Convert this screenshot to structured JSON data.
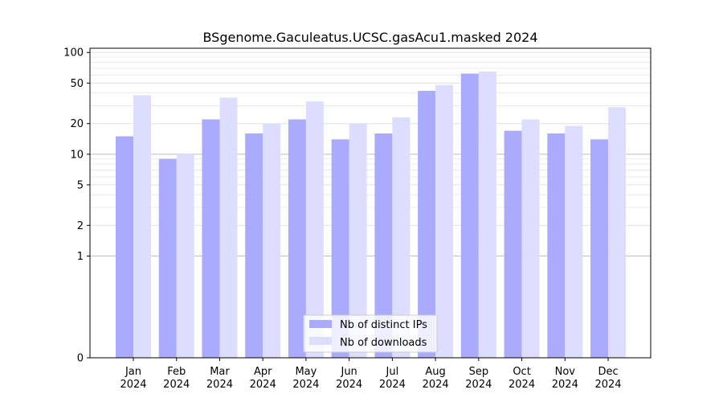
{
  "chart_data": {
    "type": "bar",
    "title": "BSgenome.Gaculeatus.UCSC.gasAcu1.masked 2024",
    "xlabel": "",
    "ylabel": "",
    "categories": [
      "Jan\n2024",
      "Feb\n2024",
      "Mar\n2024",
      "Apr\n2024",
      "May\n2024",
      "Jun\n2024",
      "Jul\n2024",
      "Aug\n2024",
      "Sep\n2024",
      "Oct\n2024",
      "Nov\n2024",
      "Dec\n2024"
    ],
    "category_month": [
      "Jan",
      "Feb",
      "Mar",
      "Apr",
      "May",
      "Jun",
      "Jul",
      "Aug",
      "Sep",
      "Oct",
      "Nov",
      "Dec"
    ],
    "category_year": [
      "2024",
      "2024",
      "2024",
      "2024",
      "2024",
      "2024",
      "2024",
      "2024",
      "2024",
      "2024",
      "2024",
      "2024"
    ],
    "series": [
      {
        "name": "Nb of distinct IPs",
        "color": "#aaaaff",
        "values": [
          15,
          9,
          22,
          16,
          22,
          14,
          16,
          42,
          62,
          17,
          16,
          14
        ]
      },
      {
        "name": "Nb of downloads",
        "color": "#ddddff",
        "values": [
          38,
          10,
          36,
          20,
          33,
          20,
          23,
          48,
          65,
          22,
          19,
          29
        ]
      }
    ],
    "y_scale": "symlog",
    "ylim": [
      0,
      110
    ],
    "y_ticks": [
      0,
      1,
      2,
      5,
      10,
      20,
      50,
      100
    ],
    "y_tick_labels": [
      "0",
      "1",
      "2",
      "5",
      "10",
      "20",
      "50",
      "100"
    ],
    "grid": true,
    "legend_position": "bottom-center"
  }
}
